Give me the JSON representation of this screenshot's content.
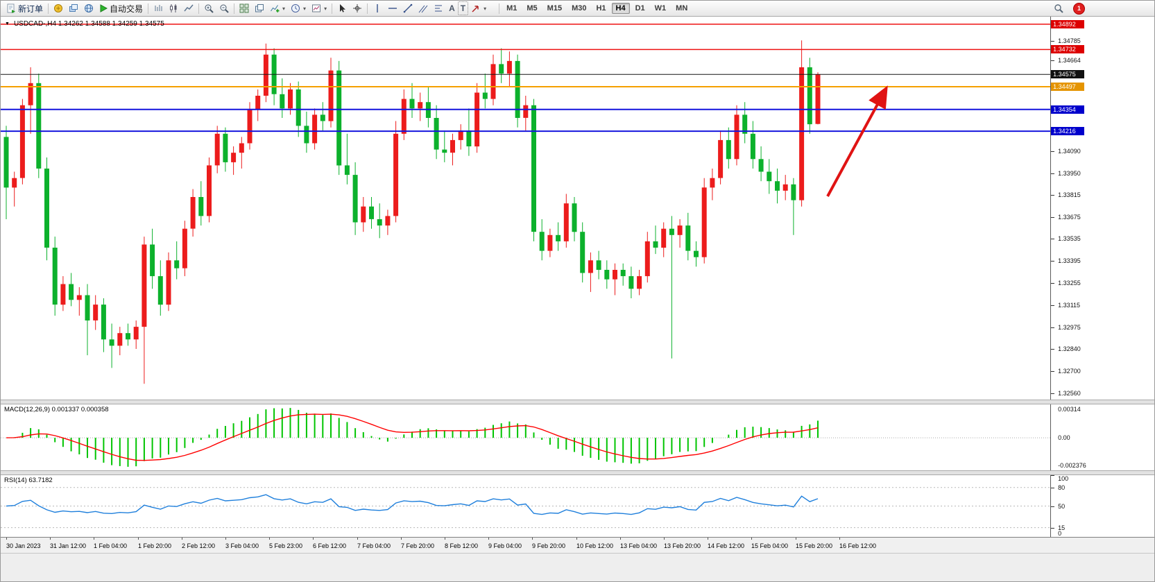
{
  "toolbar": {
    "new_order_label": "新订单",
    "autotrading_label": "自动交易",
    "text_tool_label": "A",
    "text_label_tool_label": "T",
    "timeframes": [
      "M1",
      "M5",
      "M15",
      "M30",
      "H1",
      "H4",
      "D1",
      "W1",
      "MN"
    ],
    "active_timeframe": "H4",
    "notification_count": "1"
  },
  "chart_header": {
    "symbol_info": "USDCAD-,H4 1.34262 1.34588 1.34259 1.34575"
  },
  "chart_data": {
    "type": "candlestick",
    "symbol": "USDCAD-",
    "timeframe": "H4",
    "ohlc_current": {
      "open": 1.34262,
      "high": 1.34588,
      "low": 1.34259,
      "close": 1.34575
    },
    "price_range": {
      "min": 1.3252,
      "max": 1.3494
    },
    "bull_color": "#ec1c1c",
    "bear_color": "#0cb12c",
    "price_axis_labels": [
      "1.34785",
      "1.34664",
      "1.34090",
      "1.33950",
      "1.33815",
      "1.33675",
      "1.33535",
      "1.33395",
      "1.33255",
      "1.33115",
      "1.32975",
      "1.32840",
      "1.32700",
      "1.32560"
    ],
    "price_badges": [
      {
        "value": "1.34892",
        "color": "#dd0000"
      },
      {
        "value": "1.34732",
        "color": "#dd0000"
      },
      {
        "value": "1.34575",
        "color": "#111111"
      },
      {
        "value": "1.34497",
        "color": "#e59400"
      },
      {
        "value": "1.34354",
        "color": "#0000cc"
      },
      {
        "value": "1.34216",
        "color": "#0000cc"
      }
    ],
    "hlines": [
      {
        "price": 1.34892,
        "color": "#ee1111",
        "width": 1.5
      },
      {
        "price": 1.34732,
        "color": "#ee1111",
        "width": 1.5
      },
      {
        "price": 1.34497,
        "color": "#f5a000",
        "width": 2
      },
      {
        "price": 1.34354,
        "color": "#1414dd",
        "width": 2
      },
      {
        "price": 1.34216,
        "color": "#1414dd",
        "width": 2
      },
      {
        "price": 1.34575,
        "color": "#151515",
        "width": 1
      }
    ],
    "arrow": {
      "x1_frac": 0.787,
      "y1_frac": 0.47,
      "x2_frac": 0.841,
      "y2_frac": 0.196,
      "color": "#e01313"
    },
    "time_labels": [
      "30 Jan 2023",
      "31 Jan 12:00",
      "1 Feb 04:00",
      "1 Feb 20:00",
      "2 Feb 12:00",
      "3 Feb 04:00",
      "5 Feb 23:00",
      "6 Feb 12:00",
      "7 Feb 04:00",
      "7 Feb 20:00",
      "8 Feb 12:00",
      "9 Feb 04:00",
      "9 Feb 20:00",
      "10 Feb 12:00",
      "13 Feb 04:00",
      "13 Feb 20:00",
      "14 Feb 12:00",
      "15 Feb 04:00",
      "15 Feb 20:00",
      "16 Feb 12:00"
    ],
    "candles": [
      [
        1.3418,
        1.3425,
        1.3366,
        1.3386
      ],
      [
        1.3386,
        1.3396,
        1.3374,
        1.3392
      ],
      [
        1.3392,
        1.3442,
        1.3388,
        1.3438
      ],
      [
        1.3438,
        1.3462,
        1.342,
        1.3452
      ],
      [
        1.3452,
        1.3458,
        1.3392,
        1.3398
      ],
      [
        1.3398,
        1.3405,
        1.334,
        1.3348
      ],
      [
        1.3348,
        1.3355,
        1.3305,
        1.3312
      ],
      [
        1.3312,
        1.333,
        1.3308,
        1.3325
      ],
      [
        1.3325,
        1.3332,
        1.3311,
        1.3315
      ],
      [
        1.3315,
        1.3323,
        1.3305,
        1.3318
      ],
      [
        1.3318,
        1.3325,
        1.328,
        1.3302
      ],
      [
        1.3302,
        1.3318,
        1.3296,
        1.3312
      ],
      [
        1.3312,
        1.3316,
        1.3282,
        1.329
      ],
      [
        1.329,
        1.33,
        1.3272,
        1.3286
      ],
      [
        1.3286,
        1.3298,
        1.328,
        1.3294
      ],
      [
        1.3294,
        1.33,
        1.3286,
        1.329
      ],
      [
        1.329,
        1.3302,
        1.3284,
        1.3298
      ],
      [
        1.3298,
        1.3355,
        1.3262,
        1.335
      ],
      [
        1.335,
        1.336,
        1.3322,
        1.333
      ],
      [
        1.333,
        1.334,
        1.3305,
        1.3312
      ],
      [
        1.3312,
        1.3345,
        1.3308,
        1.334
      ],
      [
        1.334,
        1.3352,
        1.3328,
        1.3335
      ],
      [
        1.3335,
        1.3365,
        1.333,
        1.336
      ],
      [
        1.336,
        1.3385,
        1.3355,
        1.338
      ],
      [
        1.338,
        1.339,
        1.3362,
        1.3368
      ],
      [
        1.3368,
        1.3405,
        1.3364,
        1.34
      ],
      [
        1.34,
        1.3425,
        1.3395,
        1.342
      ],
      [
        1.342,
        1.3424,
        1.3396,
        1.3402
      ],
      [
        1.3402,
        1.3412,
        1.3394,
        1.3408
      ],
      [
        1.3408,
        1.3418,
        1.3398,
        1.3414
      ],
      [
        1.3414,
        1.344,
        1.341,
        1.3435
      ],
      [
        1.3435,
        1.3448,
        1.3428,
        1.3444
      ],
      [
        1.3444,
        1.3477,
        1.344,
        1.347
      ],
      [
        1.347,
        1.3474,
        1.3438,
        1.3445
      ],
      [
        1.3445,
        1.3455,
        1.343,
        1.3436
      ],
      [
        1.3436,
        1.3452,
        1.3432,
        1.3448
      ],
      [
        1.3448,
        1.3453,
        1.3418,
        1.3425
      ],
      [
        1.3425,
        1.3434,
        1.3408,
        1.3414
      ],
      [
        1.3414,
        1.3436,
        1.341,
        1.3432
      ],
      [
        1.3432,
        1.344,
        1.3422,
        1.3428
      ],
      [
        1.3428,
        1.3468,
        1.3424,
        1.346
      ],
      [
        1.346,
        1.3466,
        1.3394,
        1.34
      ],
      [
        1.34,
        1.342,
        1.3388,
        1.3394
      ],
      [
        1.3394,
        1.3402,
        1.3356,
        1.3364
      ],
      [
        1.3364,
        1.338,
        1.3358,
        1.3374
      ],
      [
        1.3374,
        1.338,
        1.336,
        1.3366
      ],
      [
        1.3366,
        1.3376,
        1.3354,
        1.3362
      ],
      [
        1.3362,
        1.3372,
        1.3356,
        1.3368
      ],
      [
        1.3368,
        1.3428,
        1.3364,
        1.342
      ],
      [
        1.342,
        1.3448,
        1.3416,
        1.3442
      ],
      [
        1.3442,
        1.3452,
        1.343,
        1.3436
      ],
      [
        1.3436,
        1.3446,
        1.3428,
        1.344
      ],
      [
        1.344,
        1.345,
        1.3424,
        1.343
      ],
      [
        1.343,
        1.3438,
        1.3404,
        1.341
      ],
      [
        1.341,
        1.3422,
        1.3402,
        1.3408
      ],
      [
        1.3408,
        1.342,
        1.34,
        1.3416
      ],
      [
        1.3416,
        1.3426,
        1.341,
        1.3422
      ],
      [
        1.3422,
        1.3436,
        1.3406,
        1.3412
      ],
      [
        1.3412,
        1.3452,
        1.3408,
        1.3446
      ],
      [
        1.3446,
        1.3458,
        1.3436,
        1.3442
      ],
      [
        1.3442,
        1.347,
        1.3438,
        1.3464
      ],
      [
        1.3464,
        1.3474,
        1.3452,
        1.3458
      ],
      [
        1.3458,
        1.3472,
        1.345,
        1.3466
      ],
      [
        1.3466,
        1.347,
        1.3424,
        1.343
      ],
      [
        1.343,
        1.3444,
        1.3422,
        1.3438
      ],
      [
        1.3438,
        1.3442,
        1.3352,
        1.3358
      ],
      [
        1.3358,
        1.3366,
        1.334,
        1.3346
      ],
      [
        1.3346,
        1.336,
        1.3342,
        1.3356
      ],
      [
        1.3356,
        1.3364,
        1.3346,
        1.3352
      ],
      [
        1.3352,
        1.3382,
        1.3348,
        1.3376
      ],
      [
        1.3376,
        1.338,
        1.3352,
        1.3358
      ],
      [
        1.3358,
        1.3364,
        1.3326,
        1.3332
      ],
      [
        1.3332,
        1.3345,
        1.332,
        1.334
      ],
      [
        1.334,
        1.3346,
        1.3328,
        1.3334
      ],
      [
        1.3334,
        1.334,
        1.3322,
        1.3328
      ],
      [
        1.3328,
        1.3338,
        1.3318,
        1.3334
      ],
      [
        1.3334,
        1.3338,
        1.3324,
        1.333
      ],
      [
        1.333,
        1.3336,
        1.3316,
        1.3322
      ],
      [
        1.3322,
        1.3334,
        1.3318,
        1.333
      ],
      [
        1.333,
        1.3358,
        1.3326,
        1.3352
      ],
      [
        1.3352,
        1.3362,
        1.3344,
        1.3348
      ],
      [
        1.3348,
        1.3364,
        1.3342,
        1.336
      ],
      [
        1.336,
        1.3368,
        1.3278,
        1.3356
      ],
      [
        1.3356,
        1.3366,
        1.3348,
        1.3362
      ],
      [
        1.3362,
        1.337,
        1.334,
        1.3346
      ],
      [
        1.3346,
        1.3352,
        1.3336,
        1.3342
      ],
      [
        1.3342,
        1.3392,
        1.3338,
        1.3386
      ],
      [
        1.3386,
        1.3398,
        1.3378,
        1.3392
      ],
      [
        1.3392,
        1.3422,
        1.3388,
        1.3416
      ],
      [
        1.3416,
        1.3424,
        1.3398,
        1.3404
      ],
      [
        1.3404,
        1.3438,
        1.34,
        1.3432
      ],
      [
        1.3432,
        1.344,
        1.3414,
        1.342
      ],
      [
        1.342,
        1.3428,
        1.3398,
        1.3404
      ],
      [
        1.3404,
        1.3412,
        1.339,
        1.3396
      ],
      [
        1.3396,
        1.3404,
        1.3382,
        1.339
      ],
      [
        1.339,
        1.3398,
        1.3376,
        1.3384
      ],
      [
        1.3384,
        1.3394,
        1.3378,
        1.3388
      ],
      [
        1.3388,
        1.3392,
        1.3356,
        1.3378
      ],
      [
        1.3378,
        1.3479,
        1.3374,
        1.3462
      ],
      [
        1.3462,
        1.3468,
        1.342,
        1.3426
      ],
      [
        1.34262,
        1.34588,
        1.34259,
        1.34575
      ]
    ],
    "indicators": {
      "macd": {
        "label": "MACD(12,26,9) 0.001337 0.000358",
        "value_main": 0.001337,
        "value_signal": 0.000358,
        "axis_labels": [
          "0.00314",
          "0.00",
          "-0.002376"
        ],
        "histogram_color": "#00c400",
        "signal_color": "#ff0000"
      },
      "rsi": {
        "label": "RSI(14) 63.7182",
        "value": 63.7182,
        "axis_labels": [
          "100",
          "80",
          "50",
          "15",
          "0"
        ],
        "levels": [
          80,
          50,
          15
        ],
        "line_color": "#1e7fdc"
      }
    }
  }
}
